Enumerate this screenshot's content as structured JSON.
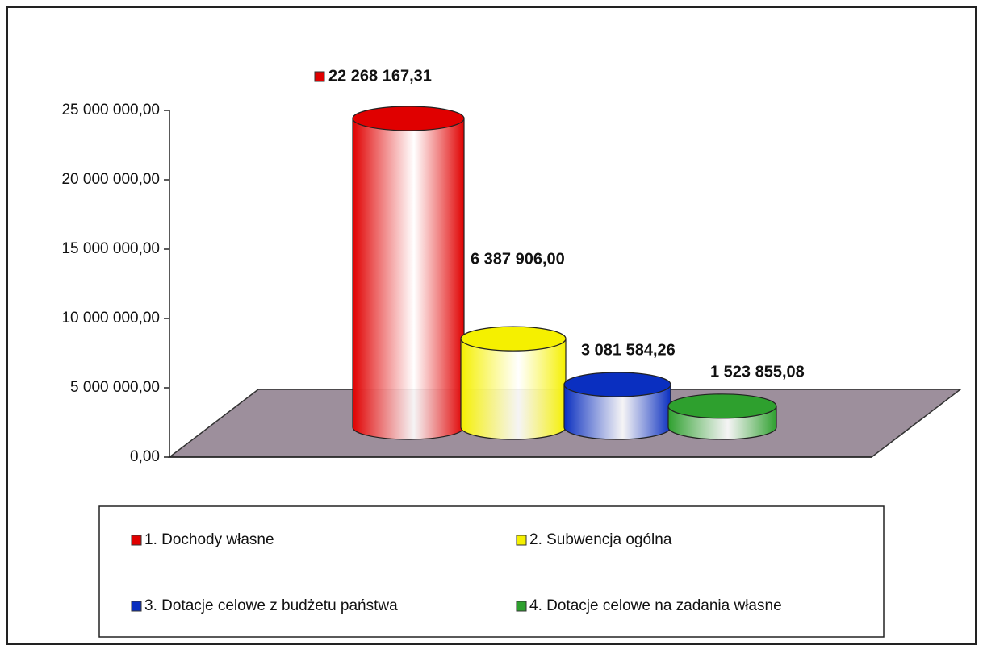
{
  "chart_data": {
    "type": "bar3d",
    "series": [
      {
        "name": "1. Dochody własne",
        "color": "#e00000",
        "values": [
          22268167.31
        ],
        "value_labels": [
          "22 268 167,31"
        ]
      },
      {
        "name": "2. Subwencja ogólna",
        "color": "#f5f000",
        "values": [
          6387906.0
        ],
        "value_labels": [
          "6 387 906,00"
        ]
      },
      {
        "name": "3. Dotacje celowe z budżetu państwa",
        "color": "#0a2fc0",
        "values": [
          3081584.26
        ],
        "value_labels": [
          "3 081 584,26"
        ]
      },
      {
        "name": "4. Dotacje celowe na zadania własne",
        "color": "#2ea02e",
        "values": [
          1523855.08
        ],
        "value_labels": [
          "1 523 855,08"
        ]
      }
    ],
    "ylim": [
      0,
      25000000
    ],
    "yticks": [
      {
        "value": 0,
        "label": "0,00"
      },
      {
        "value": 5000000,
        "label": "5 000 000,00"
      },
      {
        "value": 10000000,
        "label": "10 000 000,00"
      },
      {
        "value": 15000000,
        "label": "15 000 000,00"
      },
      {
        "value": 20000000,
        "label": "20 000 000,00"
      },
      {
        "value": 25000000,
        "label": "25 000 000,00"
      }
    ],
    "legend": "bottom"
  }
}
